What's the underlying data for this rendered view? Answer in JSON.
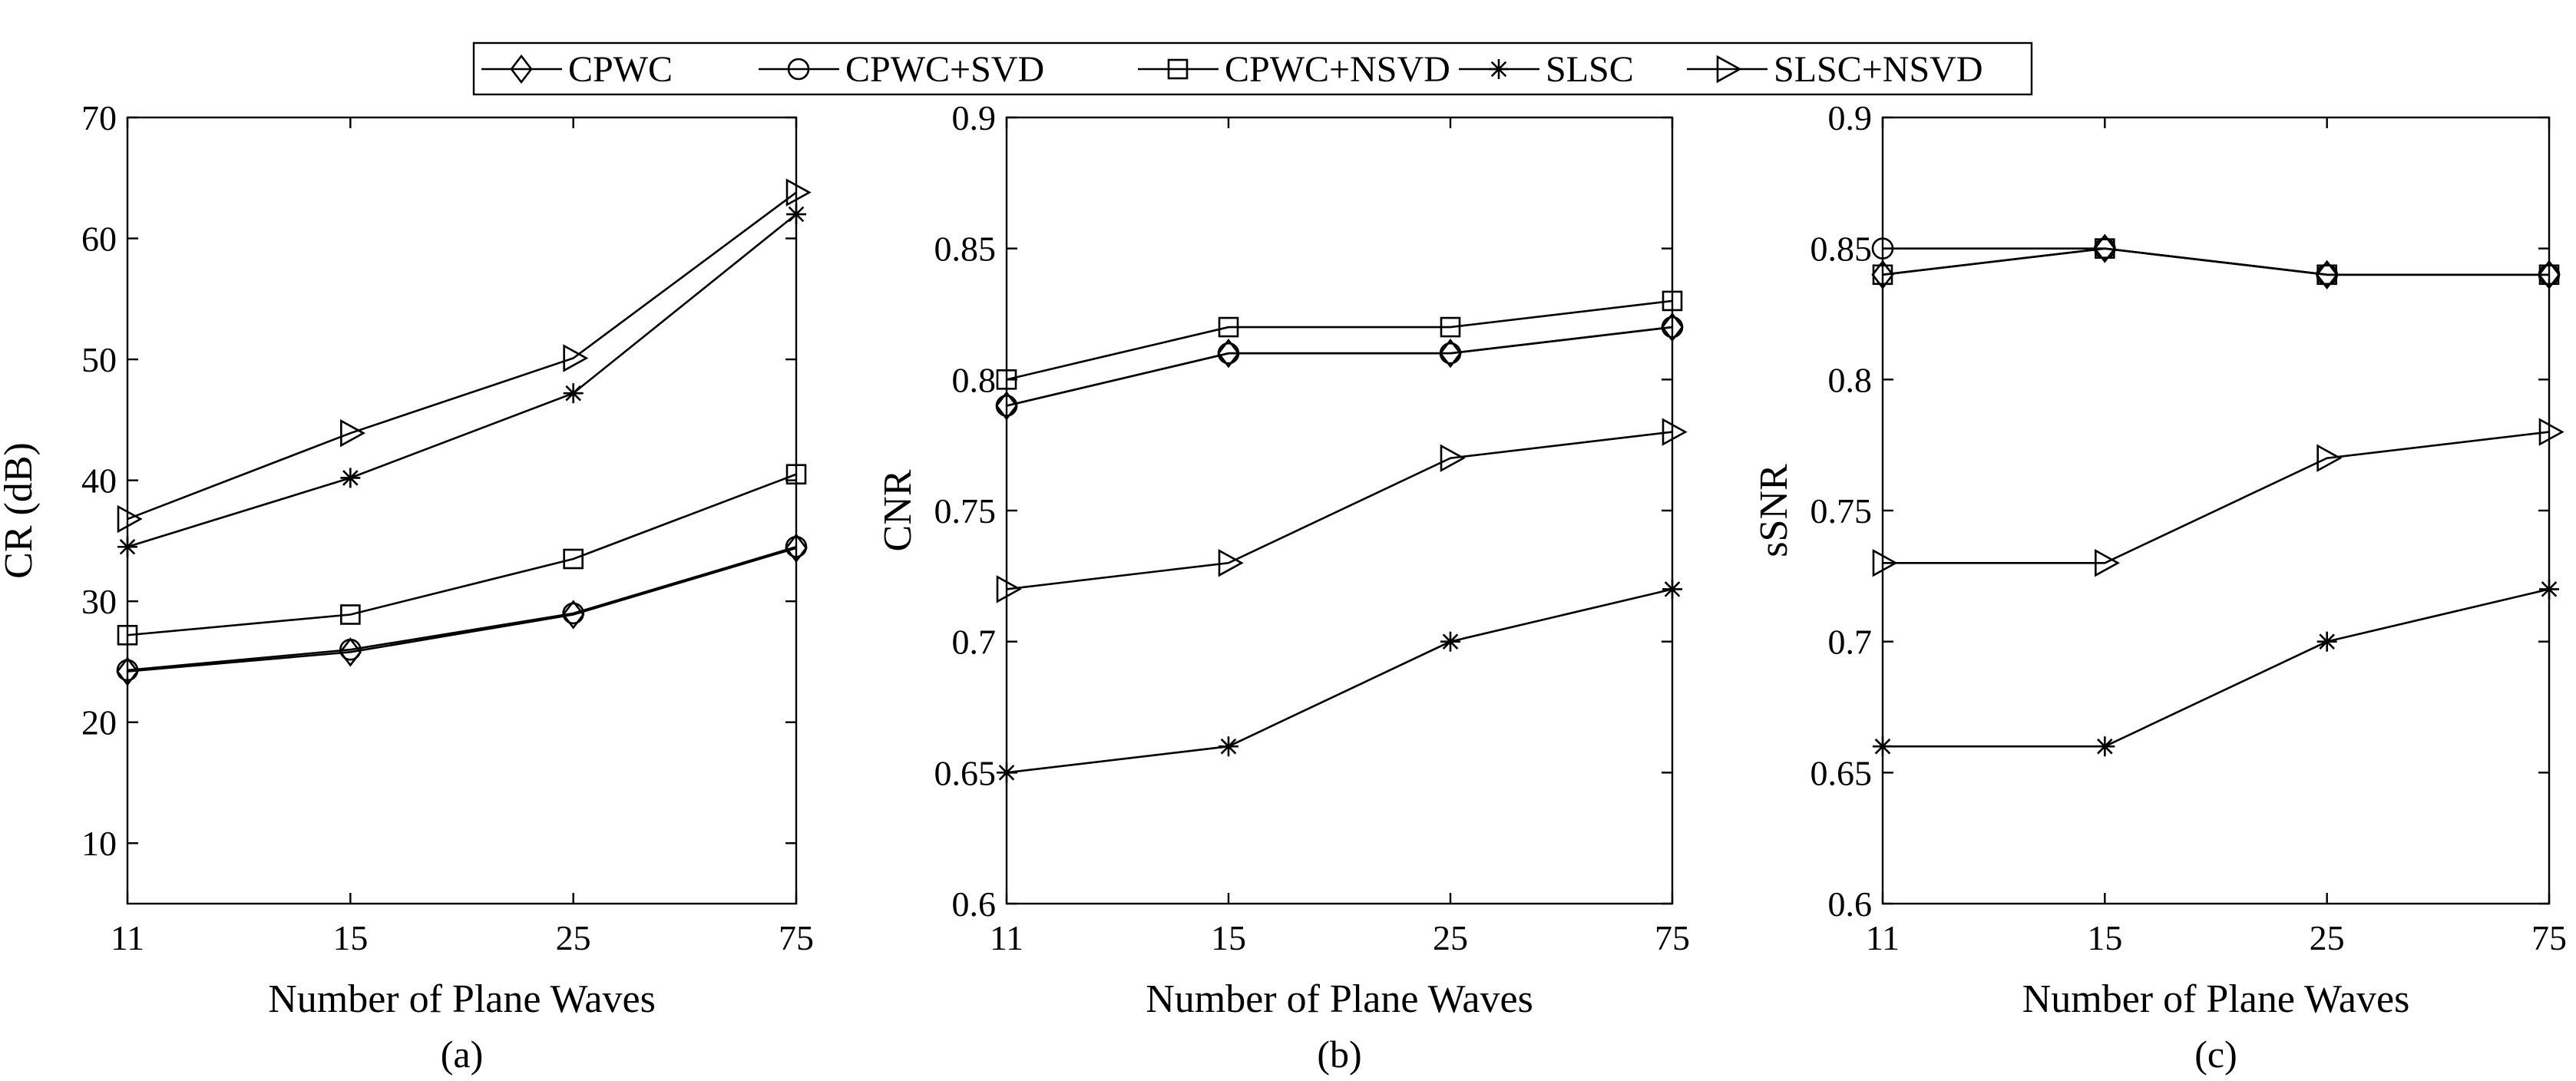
{
  "legend": [
    {
      "name": "CPWC",
      "marker": "diamond"
    },
    {
      "name": "CPWC+SVD",
      "marker": "circle"
    },
    {
      "name": "CPWC+NSVD",
      "marker": "square"
    },
    {
      "name": "SLSC",
      "marker": "asterisk"
    },
    {
      "name": "SLSC+NSVD",
      "marker": "triangle-right"
    }
  ],
  "chart_data": [
    {
      "type": "line",
      "panel_label": "(a)",
      "xlabel": "Number of Plane Waves",
      "ylabel": "CR (dB)",
      "categories": [
        "11",
        "15",
        "25",
        "75"
      ],
      "ylim": [
        5,
        70
      ],
      "yticks": [
        10,
        20,
        30,
        40,
        50,
        60,
        70
      ],
      "ytick_labels": [
        "10",
        "20",
        "30",
        "40",
        "50",
        "60",
        "70"
      ],
      "series": [
        {
          "name": "CPWC",
          "marker": "diamond",
          "values": [
            24.2,
            25.8,
            28.9,
            34.4
          ]
        },
        {
          "name": "CPWC+SVD",
          "marker": "circle",
          "values": [
            24.3,
            26.0,
            29.0,
            34.5
          ]
        },
        {
          "name": "CPWC+NSVD",
          "marker": "square",
          "values": [
            27.2,
            28.9,
            33.5,
            40.5
          ]
        },
        {
          "name": "SLSC",
          "marker": "asterisk",
          "values": [
            34.5,
            40.2,
            47.2,
            62.0
          ]
        },
        {
          "name": "SLSC+NSVD",
          "marker": "triangle-right",
          "values": [
            36.8,
            43.9,
            50.1,
            63.8
          ]
        }
      ]
    },
    {
      "type": "line",
      "panel_label": "(b)",
      "xlabel": "Number of Plane Waves",
      "ylabel": "CNR",
      "categories": [
        "11",
        "15",
        "25",
        "75"
      ],
      "ylim": [
        0.6,
        0.9
      ],
      "yticks": [
        0.6,
        0.65,
        0.7,
        0.75,
        0.8,
        0.85,
        0.9
      ],
      "ytick_labels": [
        "0.6",
        "0.65",
        "0.7",
        "0.75",
        "0.8",
        "0.85",
        "0.9"
      ],
      "series": [
        {
          "name": "CPWC",
          "marker": "diamond",
          "values": [
            0.79,
            0.81,
            0.81,
            0.82
          ]
        },
        {
          "name": "CPWC+SVD",
          "marker": "circle",
          "values": [
            0.79,
            0.81,
            0.81,
            0.82
          ]
        },
        {
          "name": "CPWC+NSVD",
          "marker": "square",
          "values": [
            0.8,
            0.82,
            0.82,
            0.83
          ]
        },
        {
          "name": "SLSC",
          "marker": "asterisk",
          "values": [
            0.65,
            0.66,
            0.7,
            0.72
          ]
        },
        {
          "name": "SLSC+NSVD",
          "marker": "triangle-right",
          "values": [
            0.72,
            0.73,
            0.77,
            0.78
          ]
        }
      ]
    },
    {
      "type": "line",
      "panel_label": "(c)",
      "xlabel": "Number of Plane Waves",
      "ylabel": "sSNR",
      "categories": [
        "11",
        "15",
        "25",
        "75"
      ],
      "ylim": [
        0.6,
        0.9
      ],
      "yticks": [
        0.6,
        0.65,
        0.7,
        0.75,
        0.8,
        0.85,
        0.9
      ],
      "ytick_labels": [
        "0.6",
        "0.65",
        "0.7",
        "0.75",
        "0.8",
        "0.85",
        "0.9"
      ],
      "series": [
        {
          "name": "CPWC",
          "marker": "diamond",
          "values": [
            0.84,
            0.85,
            0.84,
            0.84
          ]
        },
        {
          "name": "CPWC+SVD",
          "marker": "circle",
          "values": [
            0.85,
            0.85,
            0.84,
            0.84
          ]
        },
        {
          "name": "CPWC+NSVD",
          "marker": "square",
          "values": [
            0.84,
            0.85,
            0.84,
            0.84
          ]
        },
        {
          "name": "SLSC",
          "marker": "asterisk",
          "values": [
            0.66,
            0.66,
            0.7,
            0.72
          ]
        },
        {
          "name": "SLSC+NSVD",
          "marker": "triangle-right",
          "values": [
            0.73,
            0.73,
            0.77,
            0.78
          ]
        }
      ]
    }
  ]
}
